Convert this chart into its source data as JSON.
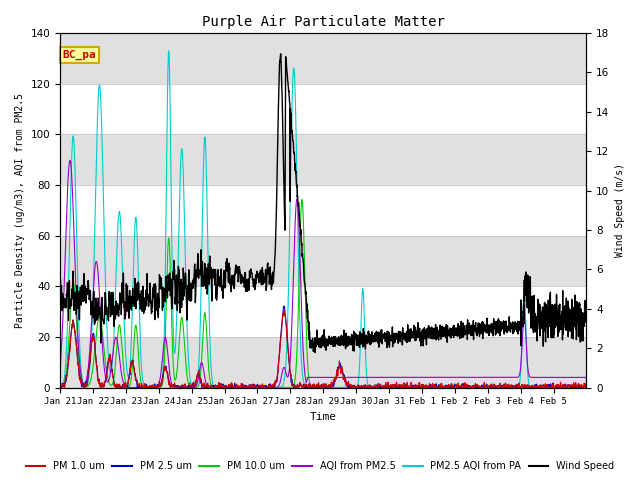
{
  "title": "Purple Air Particulate Matter",
  "xlabel": "Time",
  "ylabel_left": "Particle Density (ug/m3), AQI from PM2.5",
  "ylabel_right": "Wind Speed (m/s)",
  "annotation_text": "BC_pa",
  "annotation_color": "#cc0000",
  "annotation_bg": "#ffff99",
  "annotation_border": "#ccaa00",
  "ylim_left": [
    0,
    140
  ],
  "ylim_right": [
    0,
    18
  ],
  "bg_band_color": "#e0e0e0",
  "line_colors": {
    "PM1": "#cc0000",
    "PM25": "#0000cc",
    "PM10": "#00cc00",
    "AQI": "#9900cc",
    "PM25_AQI_PA": "#00cccc",
    "Wind": "#000000"
  },
  "legend_labels": [
    "PM 1.0 um",
    "PM 2.5 um",
    "PM 10.0 um",
    "AQI from PM2.5",
    "PM2.5 AQI from PA",
    "Wind Speed"
  ],
  "x_tick_labels": [
    "Jan 21",
    "Jan 22",
    "Jan 23",
    "Jan 24",
    "Jan 25",
    "Jan 26",
    "Jan 27",
    "Jan 28",
    "Jan 29",
    "Jan 30",
    "Jan 31",
    "Feb 1",
    "Feb 2",
    "Feb 3",
    "Feb 4",
    "Feb 5"
  ],
  "yticks_left": [
    0,
    20,
    40,
    60,
    80,
    100,
    120,
    140
  ],
  "yticks_right": [
    0,
    2,
    4,
    6,
    8,
    10,
    12,
    14,
    16,
    18
  ]
}
